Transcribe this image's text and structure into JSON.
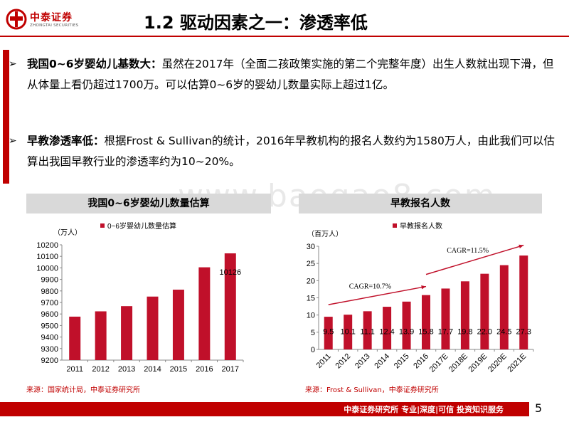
{
  "header": {
    "logo_cn": "中泰证券",
    "logo_en": "ZHONGTAI SECURITIES",
    "title": "1.2 驱动因素之一：渗透率低"
  },
  "bullets": [
    {
      "key": "我国0~6岁婴幼儿基数大：",
      "text": "虽然在2017年（全面二孩政策实施的第二个完整年度）出生人数就出现下滑，但从体量上看仍超过1700万。可以估算0~6岁的婴幼儿数量实际上超过1亿。"
    },
    {
      "key": "早教渗透率低：",
      "text": "根据Frost & Sullivan的统计，2016年早教机构的报名人数约为1580万人，由此我们可以估算出我国早教行业的渗透率约为10~20%。"
    }
  ],
  "watermark": "www.baogao8.com",
  "chart_data": [
    {
      "type": "bar",
      "panel_title": "我国0~6岁婴幼儿数量估算",
      "unit_label": "（万人）",
      "legend": "0~6岁婴幼儿数量估算",
      "categories": [
        "2011",
        "2012",
        "2013",
        "2014",
        "2015",
        "2016",
        "2017"
      ],
      "values": [
        9577,
        9623,
        9668,
        9751,
        9811,
        10005,
        10126
      ],
      "data_labels": [
        "",
        "",
        "",
        "",
        "",
        "",
        "10126"
      ],
      "ylim": [
        9200,
        10200
      ],
      "yticks": [
        9200,
        9300,
        9400,
        9500,
        9600,
        9700,
        9800,
        9900,
        10000,
        10100,
        10200
      ],
      "color": "#c0102a",
      "source": "来源：国家统计局，中泰证券研究所"
    },
    {
      "type": "bar",
      "panel_title": "早教报名人数",
      "unit_label": "（百万人）",
      "legend": "早教报名人数",
      "categories": [
        "2011",
        "2012",
        "2013",
        "2014",
        "2015",
        "2016",
        "2017E",
        "2018E",
        "2019E",
        "2020E",
        "2021E"
      ],
      "values": [
        9.5,
        10.1,
        11.1,
        12.4,
        13.9,
        15.8,
        17.7,
        19.8,
        22.0,
        24.5,
        27.3
      ],
      "data_labels": [
        "9.5",
        "10.1",
        "11.1",
        "12.4",
        "13.9",
        "15.8",
        "17.7",
        "19.8",
        "22.0",
        "24.5",
        "27.3"
      ],
      "ylim": [
        0,
        30
      ],
      "yticks": [
        0,
        5,
        10,
        15,
        20,
        25,
        30
      ],
      "color": "#c0102a",
      "annotations": [
        "CAGR=10.7%",
        "CAGR=11.5%"
      ],
      "source": "来源：Frost & Sullivan，中泰证券研究所"
    }
  ],
  "footer": {
    "text": "中泰证券研究所 专业|深度|可信 投资知识服务",
    "page": "5"
  }
}
